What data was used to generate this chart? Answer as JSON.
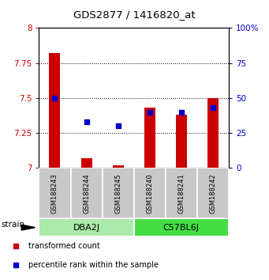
{
  "title": "GDS2877 / 1416820_at",
  "samples": [
    "GSM188243",
    "GSM188244",
    "GSM188245",
    "GSM188240",
    "GSM188241",
    "GSM188242"
  ],
  "red_values": [
    7.82,
    7.07,
    7.02,
    7.43,
    7.38,
    7.5
  ],
  "blue_values": [
    50,
    33,
    30,
    40,
    40,
    43
  ],
  "ylim_left": [
    7.0,
    8.0
  ],
  "ylim_right": [
    0,
    100
  ],
  "yticks_left": [
    7.0,
    7.25,
    7.5,
    7.75,
    8.0
  ],
  "ytick_labels_left": [
    "7",
    "7.25",
    "7.5",
    "7.75",
    "8"
  ],
  "yticks_right": [
    0,
    25,
    50,
    75,
    100
  ],
  "ytick_labels_right": [
    "0",
    "25",
    "50",
    "75",
    "100%"
  ],
  "groups": [
    {
      "label": "DBA2J",
      "start": 0,
      "end": 3,
      "color": "#AAEAAA"
    },
    {
      "label": "C57BL6J",
      "start": 3,
      "end": 6,
      "color": "#44DD44"
    }
  ],
  "bar_color": "#CC0000",
  "marker_color": "#0000CC",
  "bar_width": 0.35,
  "baseline": 7.0,
  "bg_color": "#FFFFFF",
  "sample_bg_color": "#C8C8C8",
  "legend_red_label": "transformed count",
  "legend_blue_label": "percentile rank within the sample",
  "strain_label": "strain",
  "dotted_yticks": [
    7.25,
    7.5,
    7.75
  ]
}
